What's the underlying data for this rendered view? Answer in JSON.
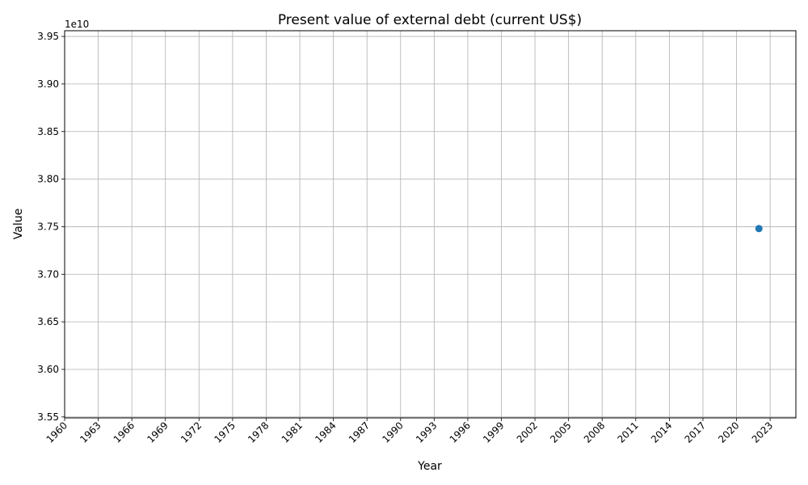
{
  "chart_data": {
    "type": "scatter",
    "title": "Present value of external debt (current US$)",
    "xlabel": "Year",
    "ylabel": "Value",
    "offset_label": "1e10",
    "series": [
      {
        "x": [
          2022
        ],
        "y": [
          37480000000
        ],
        "color": "#1f77b4"
      }
    ],
    "xlim": [
      1960,
      2025.3
    ],
    "ylim": [
      35490000000,
      39560000000
    ],
    "x_ticks": [
      1960,
      1963,
      1966,
      1969,
      1972,
      1975,
      1978,
      1981,
      1984,
      1987,
      1990,
      1993,
      1996,
      1999,
      2002,
      2005,
      2008,
      2011,
      2014,
      2017,
      2020,
      2023
    ],
    "x_tick_labels": [
      "1960",
      "1963",
      "1966",
      "1969",
      "1972",
      "1975",
      "1978",
      "1981",
      "1984",
      "1987",
      "1990",
      "1993",
      "1996",
      "1999",
      "2002",
      "2005",
      "2008",
      "2011",
      "2014",
      "2017",
      "2020",
      "2023"
    ],
    "y_ticks": [
      35500000000,
      36000000000,
      36500000000,
      37000000000,
      37500000000,
      38000000000,
      38500000000,
      39000000000,
      39500000000
    ],
    "y_tick_labels": [
      "3.55",
      "3.60",
      "3.65",
      "3.70",
      "3.75",
      "3.80",
      "3.85",
      "3.90",
      "3.95"
    ],
    "grid": true,
    "colors": {
      "grid": "#b0b0b0",
      "axis": "#000000",
      "point": "#1f77b4"
    }
  }
}
